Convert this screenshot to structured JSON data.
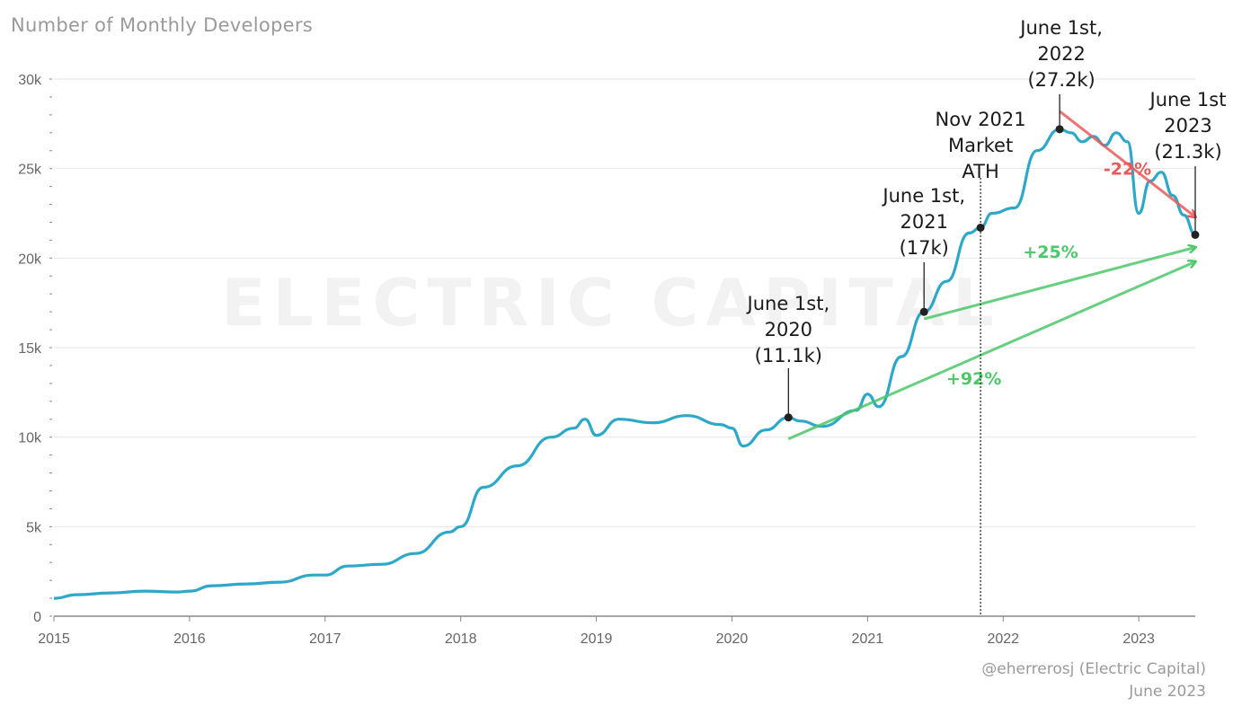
{
  "chart_data": {
    "type": "line",
    "title": "Number of Monthly Developers",
    "xlabel": "",
    "ylabel": "",
    "ylim": [
      0,
      30000
    ],
    "xlim": [
      "2015-01-01",
      "2023-06-01"
    ],
    "grid": true,
    "y_ticks": [
      "0",
      "5k",
      "10k",
      "15k",
      "20k",
      "25k",
      "30k"
    ],
    "x_ticks": [
      "2015",
      "2016",
      "2017",
      "2018",
      "2019",
      "2020",
      "2021",
      "2022",
      "2023"
    ],
    "series": [
      {
        "color": "#2ea8c8",
        "x": [
          "2015-01",
          "2015-03",
          "2015-06",
          "2015-09",
          "2015-12",
          "2016-01",
          "2016-03",
          "2016-06",
          "2016-09",
          "2016-12",
          "2017-01",
          "2017-03",
          "2017-06",
          "2017-09",
          "2017-12",
          "2018-01",
          "2018-03",
          "2018-06",
          "2018-09",
          "2018-11",
          "2018-12",
          "2019-01",
          "2019-03",
          "2019-06",
          "2019-09",
          "2019-12",
          "2020-01",
          "2020-02",
          "2020-04",
          "2020-06",
          "2020-07",
          "2020-09",
          "2020-12",
          "2021-01",
          "2021-02",
          "2021-04",
          "2021-06",
          "2021-08",
          "2021-10",
          "2021-11",
          "2021-12",
          "2022-02",
          "2022-04",
          "2022-06",
          "2022-07",
          "2022-08",
          "2022-09",
          "2022-10",
          "2022-11",
          "2022-12",
          "2023-01",
          "2023-02",
          "2023-03",
          "2023-04",
          "2023-05",
          "2023-06"
        ],
        "y": [
          1000,
          1200,
          1300,
          1400,
          1350,
          1400,
          1700,
          1800,
          1900,
          2300,
          2300,
          2800,
          2900,
          3500,
          4700,
          5000,
          7200,
          8400,
          10000,
          10500,
          11000,
          10100,
          11000,
          10800,
          11200,
          10700,
          10500,
          9500,
          10400,
          11100,
          10900,
          10600,
          11500,
          12400,
          11700,
          14500,
          17000,
          18700,
          21400,
          21700,
          22500,
          22800,
          26000,
          27200,
          27000,
          26500,
          26800,
          26300,
          27000,
          26500,
          22500,
          24300,
          24800,
          23500,
          22400,
          21300
        ]
      }
    ],
    "annotations": [
      {
        "id": "2020",
        "lines": [
          "June 1st,",
          "2020",
          "(11.1k)"
        ],
        "x": "2020-06-01",
        "y": 11100
      },
      {
        "id": "2021",
        "lines": [
          "June 1st,",
          "2021",
          "(17k)"
        ],
        "x": "2021-06-01",
        "y": 17000
      },
      {
        "id": "ath",
        "lines": [
          "Nov 2021",
          "Market",
          "ATH"
        ],
        "x": "2021-11-01",
        "y": 21700
      },
      {
        "id": "2022",
        "lines": [
          "June 1st,",
          "2022",
          "(27.2k)"
        ],
        "x": "2022-06-01",
        "y": 27200
      },
      {
        "id": "2023",
        "lines": [
          "June 1st",
          "2023",
          "(21.3k)"
        ],
        "x": "2023-06-01",
        "y": 21300
      }
    ],
    "changes": [
      {
        "label": "-22%",
        "color": "#e85a5a",
        "from": {
          "x": "2022-06-01",
          "y": 28200
        },
        "to": {
          "x": "2023-06-01",
          "y": 22300
        }
      },
      {
        "label": "+25%",
        "color": "#4cc76a",
        "from": {
          "x": "2021-06-01",
          "y": 16600
        },
        "to": {
          "x": "2023-06-01",
          "y": 20600
        }
      },
      {
        "label": "+92%",
        "color": "#4cc76a",
        "from": {
          "x": "2020-06-01",
          "y": 9900
        },
        "to": {
          "x": "2023-06-01",
          "y": 19800
        }
      }
    ]
  },
  "watermark": "ELECTRIC CAPITAL",
  "credit": {
    "line1": "@eherrerosj (Electric Capital)",
    "line2": "June 2023"
  }
}
